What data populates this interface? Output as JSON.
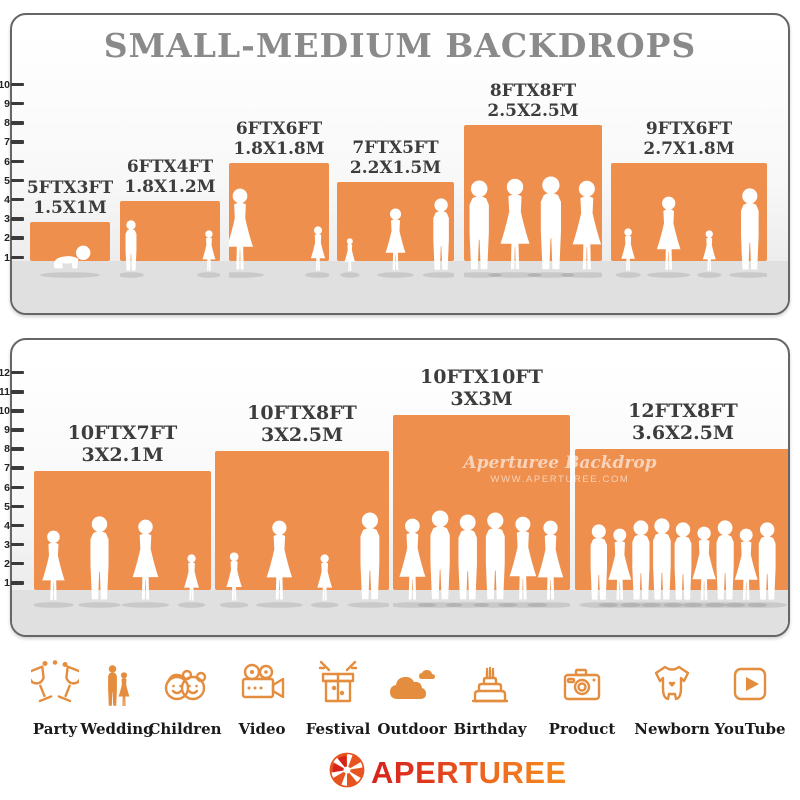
{
  "title": "SMALL-MEDIUM BACKDROPS",
  "colors": {
    "backdrop_orange": "#EE8F4D",
    "icon_orange": "#E58D3F",
    "title_gray": "#8A8A8A",
    "label_dark": "#3D3D3D",
    "floor_gray": "#E0E0E0",
    "logo_red": "#D6231E",
    "logo_orange": "#F5891F"
  },
  "panels": [
    {
      "name": "small backdrops",
      "ruler": {
        "labels": [
          "1",
          "2",
          "3",
          "4",
          "5",
          "6",
          "7",
          "8",
          "9",
          "10"
        ]
      },
      "items": [
        {
          "size_ft": "5FTX3FT",
          "size_m": "1.5X1M"
        },
        {
          "size_ft": "6FTX4FT",
          "size_m": "1.8X1.2M"
        },
        {
          "size_ft": "6FTX6FT",
          "size_m": "1.8X1.8M"
        },
        {
          "size_ft": "7FTX5FT",
          "size_m": "2.2X1.5M"
        },
        {
          "size_ft": "8FTX8FT",
          "size_m": "2.5X2.5M"
        },
        {
          "size_ft": "9FTX6FT",
          "size_m": "2.7X1.8M"
        }
      ]
    },
    {
      "name": "medium backdrops",
      "ruler": {
        "labels": [
          "1",
          "2",
          "3",
          "4",
          "5",
          "6",
          "7",
          "8",
          "9",
          "10",
          "11",
          "12"
        ]
      },
      "items": [
        {
          "size_ft": "10FTX7FT",
          "size_m": "3X2.1M"
        },
        {
          "size_ft": "10FTX8FT",
          "size_m": "3X2.5M"
        },
        {
          "size_ft": "10FTX10FT",
          "size_m": "3X3M"
        },
        {
          "size_ft": "12FTX8FT",
          "size_m": "3.6X2.5M"
        }
      ]
    }
  ],
  "watermark": {
    "line1": "Aperturee Backdrop",
    "line2": "WWW.APERTUREE.COM"
  },
  "categories": [
    {
      "label": "Party",
      "icon": "party-icon"
    },
    {
      "label": "Wedding",
      "icon": "wedding-icon"
    },
    {
      "label": "Children",
      "icon": "children-icon"
    },
    {
      "label": "Video",
      "icon": "video-icon"
    },
    {
      "label": "Festival",
      "icon": "festival-icon"
    },
    {
      "label": "Outdoor",
      "icon": "outdoor-icon"
    },
    {
      "label": "Birthday",
      "icon": "birthday-icon"
    },
    {
      "label": "Product",
      "icon": "product-icon"
    },
    {
      "label": "Newborn",
      "icon": "newborn-icon"
    },
    {
      "label": "YouTube",
      "icon": "youtube-icon"
    }
  ],
  "logo": {
    "text": "APERTUREE"
  }
}
